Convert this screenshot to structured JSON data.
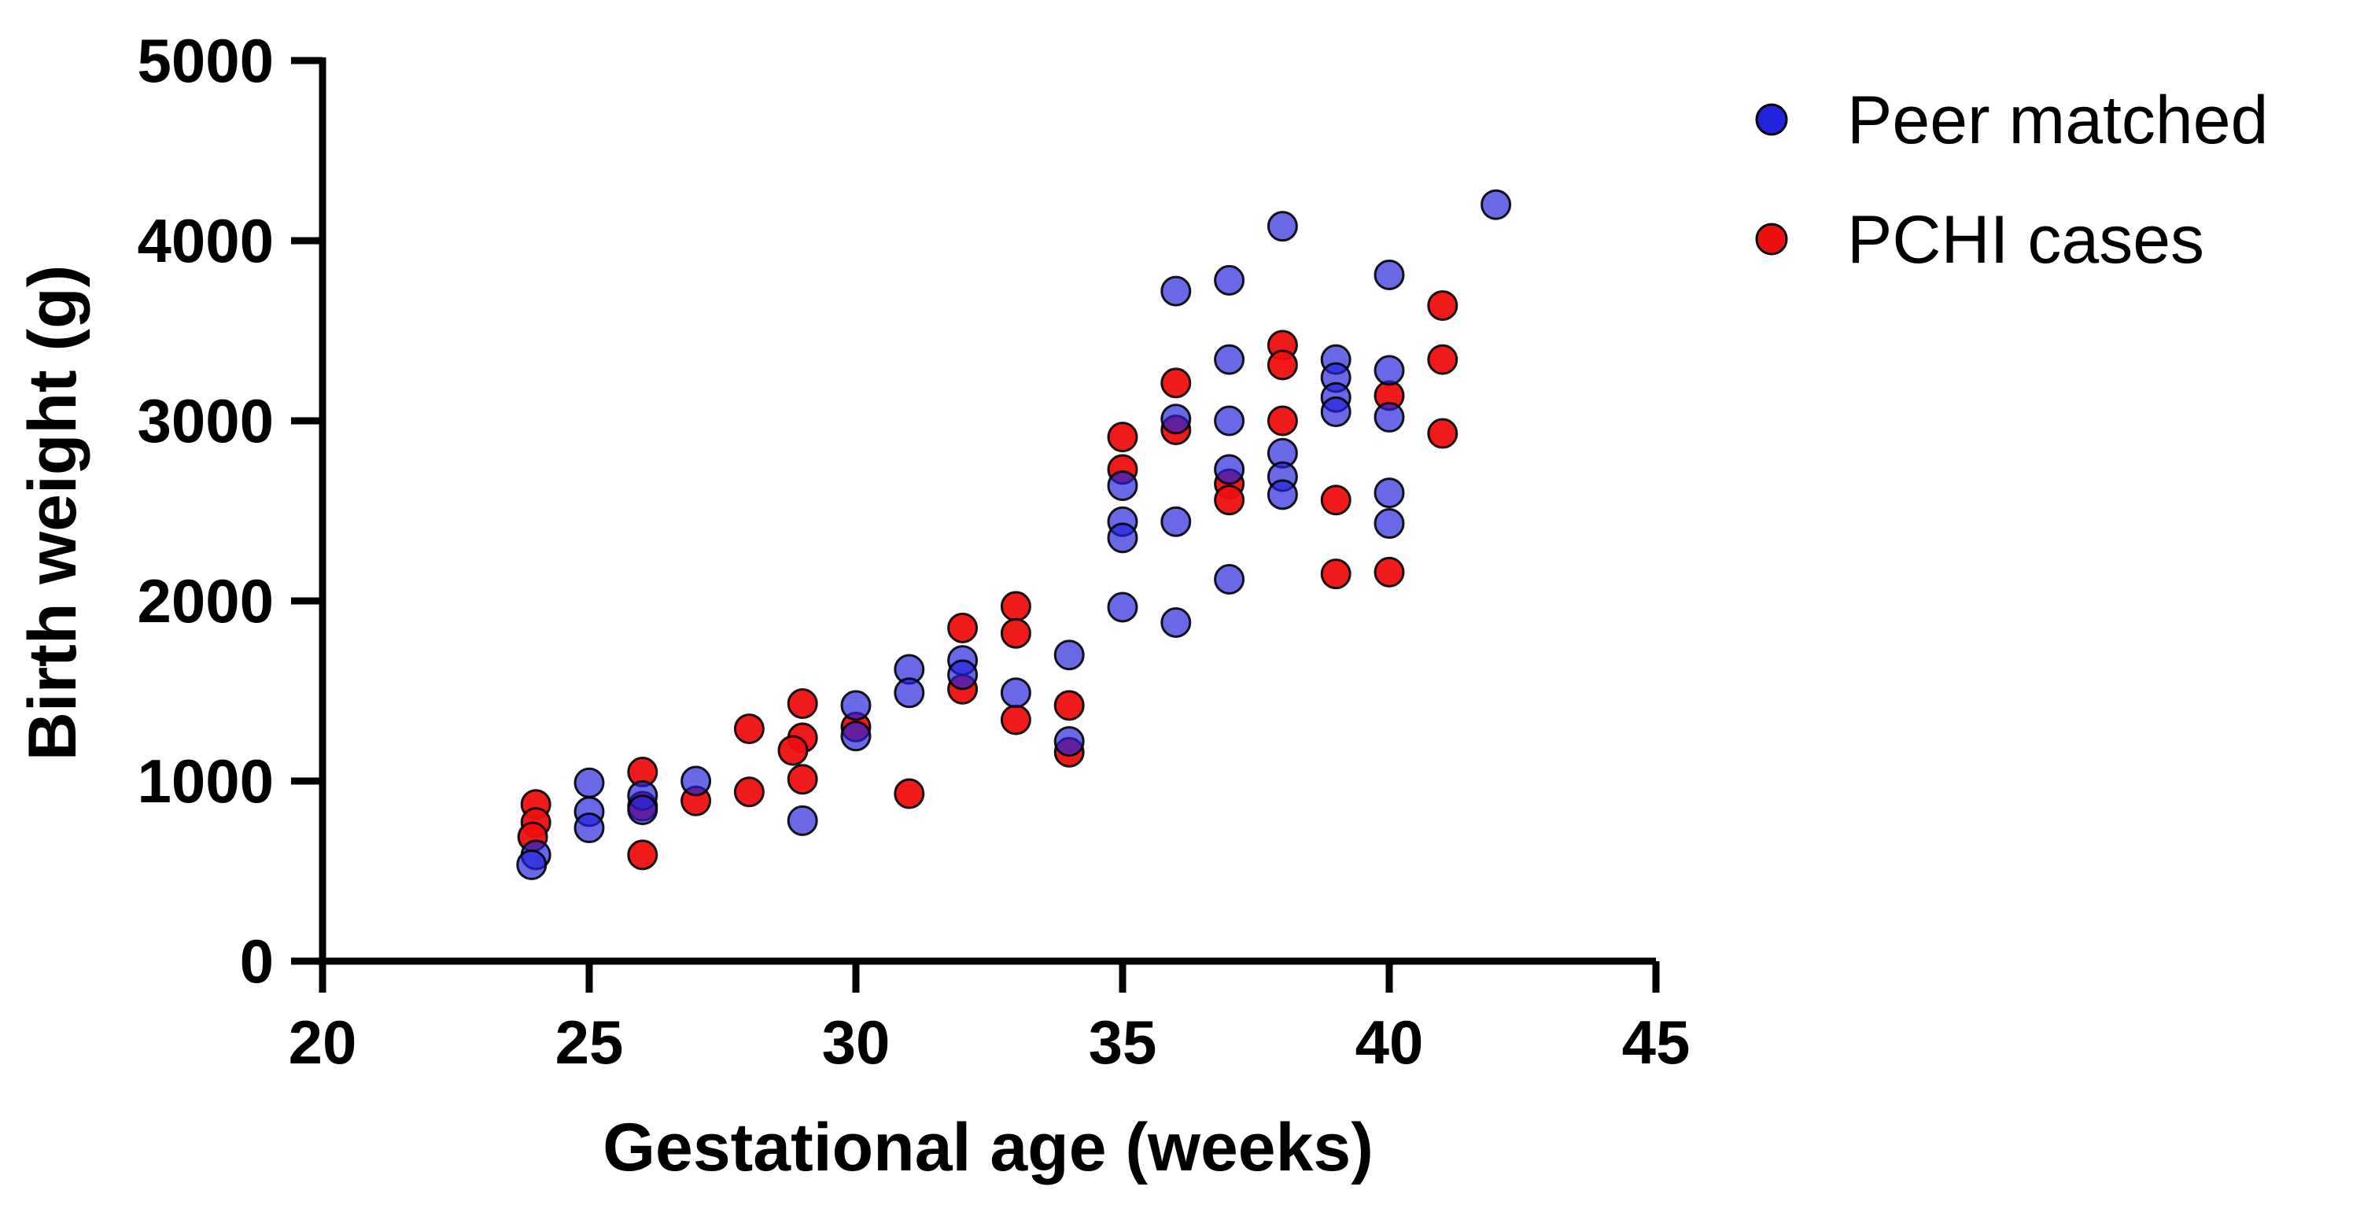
{
  "chart_data": {
    "type": "scatter",
    "title": "",
    "xlabel": "Gestational age (weeks)",
    "ylabel": "Birth weight (g)",
    "xlim": [
      20,
      45
    ],
    "ylim": [
      0,
      5000
    ],
    "x_ticks": [
      20,
      25,
      30,
      35,
      40,
      45
    ],
    "y_ticks": [
      0,
      1000,
      2000,
      3000,
      4000,
      5000
    ],
    "grid": "off",
    "legend_position": "top-right",
    "axis_color": "#000000",
    "background_color": "#ffffff",
    "marker_outline_color": "#000000",
    "series": [
      {
        "name": "Peer matched",
        "color": "#2222DD",
        "fill_opacity": 0.68,
        "z": 1,
        "points": [
          [
            24,
            590
          ],
          [
            24,
            535,
            -0.08
          ],
          [
            25,
            990
          ],
          [
            25,
            830
          ],
          [
            25,
            740
          ],
          [
            26,
            920
          ],
          [
            26,
            840
          ],
          [
            27,
            1000
          ],
          [
            29,
            780
          ],
          [
            30,
            1420
          ],
          [
            30,
            1250
          ],
          [
            31,
            1620
          ],
          [
            31,
            1490
          ],
          [
            32,
            1670
          ],
          [
            32,
            1590
          ],
          [
            33,
            1490
          ],
          [
            34,
            1700
          ],
          [
            34,
            1220
          ],
          [
            35,
            2640
          ],
          [
            35,
            2440
          ],
          [
            35,
            2350
          ],
          [
            35,
            1965
          ],
          [
            36,
            3720
          ],
          [
            36,
            3010
          ],
          [
            36,
            2440
          ],
          [
            36,
            1880
          ],
          [
            37,
            3780
          ],
          [
            37,
            3340
          ],
          [
            37,
            3000
          ],
          [
            37,
            2730
          ],
          [
            37,
            2120
          ],
          [
            38,
            4080
          ],
          [
            38,
            2820
          ],
          [
            38,
            2690
          ],
          [
            38,
            2590
          ],
          [
            39,
            3340
          ],
          [
            39,
            3240
          ],
          [
            39,
            3130
          ],
          [
            39,
            3050
          ],
          [
            40,
            3810
          ],
          [
            40,
            3280
          ],
          [
            40,
            3020
          ],
          [
            40,
            2600
          ],
          [
            40,
            2430
          ],
          [
            42,
            4200
          ]
        ]
      },
      {
        "name": "PCHI cases",
        "color": "#EE0F0F",
        "fill_opacity": 0.95,
        "z": 0,
        "points": [
          [
            24,
            870
          ],
          [
            24,
            770
          ],
          [
            24,
            690,
            -0.06
          ],
          [
            26,
            1050
          ],
          [
            26,
            860
          ],
          [
            26,
            590
          ],
          [
            27,
            890
          ],
          [
            28,
            1290
          ],
          [
            28,
            940
          ],
          [
            29,
            1430
          ],
          [
            29,
            1240
          ],
          [
            29,
            1170,
            -0.18
          ],
          [
            29,
            1010
          ],
          [
            30,
            1300
          ],
          [
            31,
            930
          ],
          [
            32,
            1850
          ],
          [
            32,
            1510
          ],
          [
            33,
            1970
          ],
          [
            33,
            1820
          ],
          [
            33,
            1340
          ],
          [
            34,
            1420
          ],
          [
            34,
            1160
          ],
          [
            35,
            2910
          ],
          [
            35,
            2730
          ],
          [
            36,
            3210
          ],
          [
            36,
            2950
          ],
          [
            37,
            2650
          ],
          [
            37,
            2560
          ],
          [
            38,
            3420
          ],
          [
            38,
            3310
          ],
          [
            38,
            3000
          ],
          [
            39,
            2560
          ],
          [
            39,
            2150
          ],
          [
            40,
            3140
          ],
          [
            40,
            2160
          ],
          [
            41,
            3640
          ],
          [
            41,
            3340
          ],
          [
            41,
            2930
          ]
        ]
      }
    ]
  }
}
